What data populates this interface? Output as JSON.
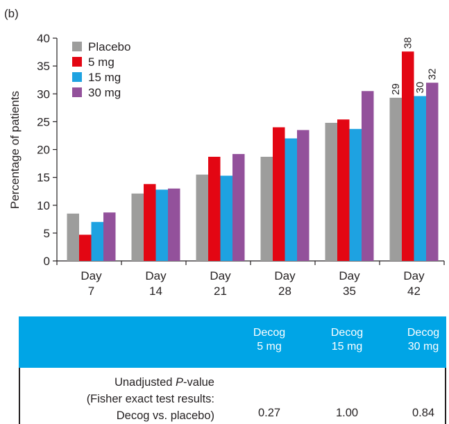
{
  "panel_label": "(b)",
  "chart_data": {
    "type": "bar",
    "categories": [
      [
        "Day",
        "7"
      ],
      [
        "Day",
        "14"
      ],
      [
        "Day",
        "21"
      ],
      [
        "Day",
        "28"
      ],
      [
        "Day",
        "35"
      ],
      [
        "Day",
        "42"
      ]
    ],
    "series": [
      {
        "name": "Placebo",
        "color": "#9d9d9c",
        "values": [
          8.5,
          12.1,
          15.5,
          18.7,
          24.8,
          29.3
        ]
      },
      {
        "name": "5 mg",
        "color": "#e30613",
        "values": [
          4.7,
          13.8,
          18.7,
          24.0,
          25.4,
          37.6
        ]
      },
      {
        "name": "15 mg",
        "color": "#1ea2e1",
        "values": [
          7.0,
          12.8,
          15.3,
          22.0,
          23.7,
          29.6
        ]
      },
      {
        "name": "30 mg",
        "color": "#93519b",
        "values": [
          8.7,
          13.0,
          19.2,
          23.5,
          30.5,
          32.0
        ]
      }
    ],
    "data_labels": {
      "category_index": 5,
      "labels": [
        "29",
        "38",
        "30",
        "32"
      ]
    },
    "ylabel": "Percentage of patients",
    "ylim": [
      0,
      40
    ],
    "yticks": [
      0,
      5,
      10,
      15,
      20,
      25,
      30,
      35,
      40
    ],
    "grid": false,
    "legend_position": "top-left"
  },
  "table": {
    "header_color": "#00a5e6",
    "columns": [
      {
        "line1": "Decog",
        "line2": "5 mg"
      },
      {
        "line1": "Decog",
        "line2": "15 mg"
      },
      {
        "line1": "Decog",
        "line2": "30 mg"
      }
    ],
    "row": {
      "label_line1_prefix": "Unadjusted ",
      "label_line1_italic": "P",
      "label_line1_suffix": "-value",
      "label_line2": "(Fisher exact test results:",
      "label_line3": "Decog vs. placebo)",
      "values": [
        "0.27",
        "1.00",
        "0.84"
      ]
    }
  }
}
